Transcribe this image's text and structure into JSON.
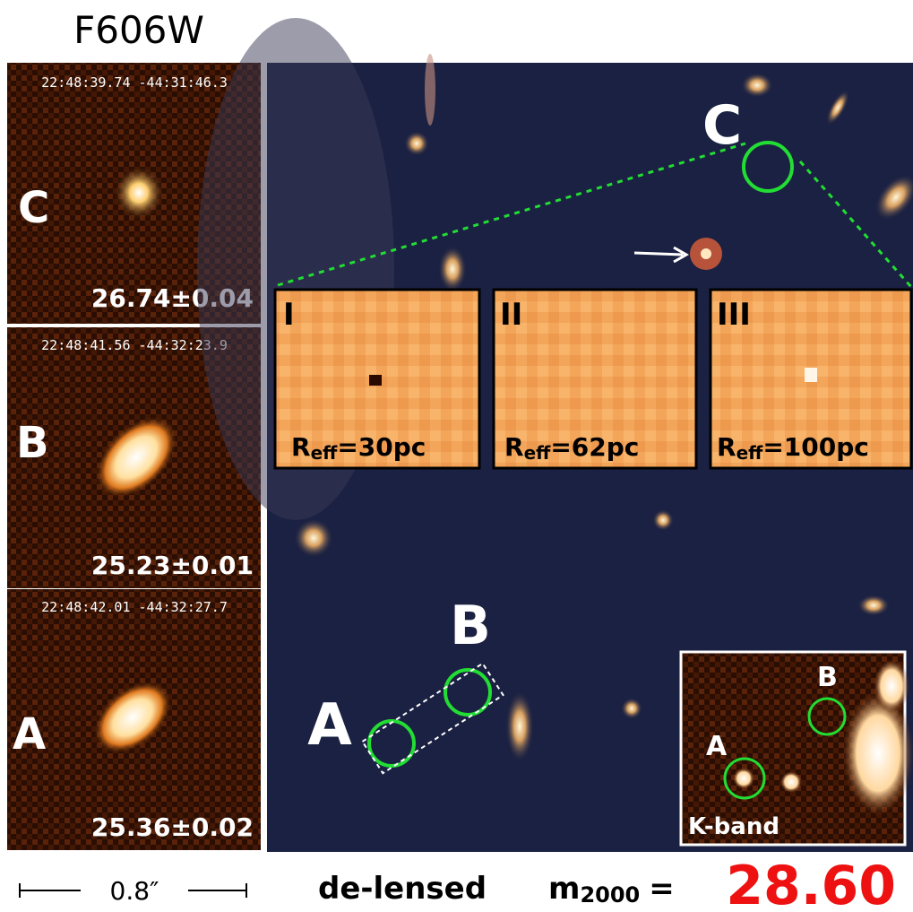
{
  "header": {
    "title": "F606W"
  },
  "panels": [
    {
      "coords": "22:48:39.74 -44:31:46.3",
      "label": "C",
      "magnitude": "26.74±0.04"
    },
    {
      "coords": "22:48:41.56 -44:32:23.9",
      "label": "B",
      "magnitude": "25.23±0.01"
    },
    {
      "coords": "22:48:42.01 -44:32:27.7",
      "label": "A",
      "magnitude": "25.36±0.02"
    }
  ],
  "main_image": {
    "labels": [
      "C",
      "B",
      "A"
    ]
  },
  "zoom_insets": [
    {
      "numeral": "I",
      "radius_symbol": "R",
      "radius_subscript": "eff",
      "radius_value": "=30pc"
    },
    {
      "numeral": "II",
      "radius_symbol": "R",
      "radius_subscript": "eff",
      "radius_value": "=62pc"
    },
    {
      "numeral": "III",
      "radius_symbol": "R",
      "radius_subscript": "eff",
      "radius_value": "=100pc"
    }
  ],
  "k_band_inset": {
    "labels": [
      "B",
      "A"
    ],
    "title": "K-band"
  },
  "footer": {
    "scale_bar": "0.8″",
    "text": "de-lensed",
    "magnitude_symbol": "m",
    "magnitude_subscript": "2000",
    "equals": "=",
    "magnitude": "28.60"
  }
}
